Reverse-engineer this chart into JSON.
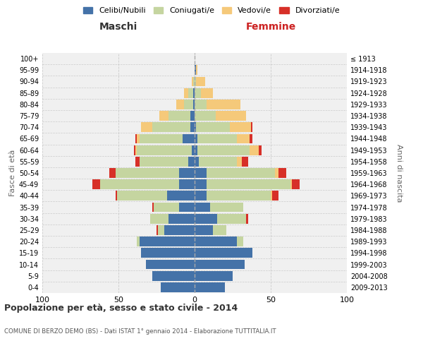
{
  "age_groups": [
    "0-4",
    "5-9",
    "10-14",
    "15-19",
    "20-24",
    "25-29",
    "30-34",
    "35-39",
    "40-44",
    "45-49",
    "50-54",
    "55-59",
    "60-64",
    "65-69",
    "70-74",
    "75-79",
    "80-84",
    "85-89",
    "90-94",
    "95-99",
    "100+"
  ],
  "anni_nascita": [
    "2009-2013",
    "2004-2008",
    "1999-2003",
    "1994-1998",
    "1989-1993",
    "1984-1988",
    "1979-1983",
    "1974-1978",
    "1969-1973",
    "1964-1968",
    "1959-1963",
    "1954-1958",
    "1949-1953",
    "1944-1948",
    "1939-1943",
    "1934-1938",
    "1929-1933",
    "1924-1928",
    "1919-1923",
    "1914-1918",
    "≤ 1913"
  ],
  "maschi": {
    "celibi": [
      22,
      28,
      32,
      35,
      36,
      20,
      17,
      10,
      18,
      10,
      10,
      4,
      2,
      8,
      3,
      3,
      1,
      1,
      0,
      0,
      0
    ],
    "coniugati": [
      0,
      0,
      0,
      0,
      2,
      4,
      12,
      17,
      33,
      52,
      42,
      32,
      36,
      28,
      25,
      14,
      6,
      3,
      1,
      0,
      0
    ],
    "vedovi": [
      0,
      0,
      0,
      0,
      0,
      0,
      0,
      0,
      0,
      0,
      0,
      0,
      1,
      2,
      7,
      6,
      5,
      3,
      1,
      0,
      0
    ],
    "divorziati": [
      0,
      0,
      0,
      0,
      0,
      1,
      0,
      1,
      1,
      5,
      4,
      3,
      1,
      1,
      0,
      0,
      0,
      0,
      0,
      0,
      0
    ]
  },
  "femmine": {
    "nubili": [
      20,
      25,
      33,
      38,
      28,
      12,
      15,
      10,
      8,
      8,
      8,
      3,
      2,
      2,
      1,
      0,
      0,
      0,
      0,
      1,
      0
    ],
    "coniugate": [
      0,
      0,
      0,
      0,
      4,
      9,
      19,
      22,
      42,
      55,
      45,
      25,
      34,
      26,
      22,
      14,
      8,
      4,
      1,
      0,
      0
    ],
    "vedove": [
      0,
      0,
      0,
      0,
      0,
      0,
      0,
      0,
      1,
      1,
      2,
      3,
      6,
      8,
      14,
      20,
      22,
      8,
      6,
      1,
      0
    ],
    "divorziate": [
      0,
      0,
      0,
      0,
      0,
      0,
      1,
      0,
      4,
      5,
      5,
      4,
      2,
      2,
      1,
      0,
      0,
      0,
      0,
      0,
      0
    ]
  },
  "colors": {
    "celibi": "#4472a8",
    "coniugati": "#c5d5a0",
    "vedovi": "#f5c97a",
    "divorziati": "#d73028"
  },
  "title": "Popolazione per età, sesso e stato civile - 2014",
  "subtitle": "COMUNE DI BERZO DEMO (BS) - Dati ISTAT 1° gennaio 2014 - Elaborazione TUTTITALIA.IT",
  "xlabel_left": "Maschi",
  "xlabel_right": "Femmine",
  "ylabel_left": "Fasce di età",
  "ylabel_right": "Anni di nascita",
  "xlim": 100,
  "background_color": "#ffffff",
  "legend_labels": [
    "Celibi/Nubili",
    "Coniugati/e",
    "Vedovi/e",
    "Divorziati/e"
  ]
}
